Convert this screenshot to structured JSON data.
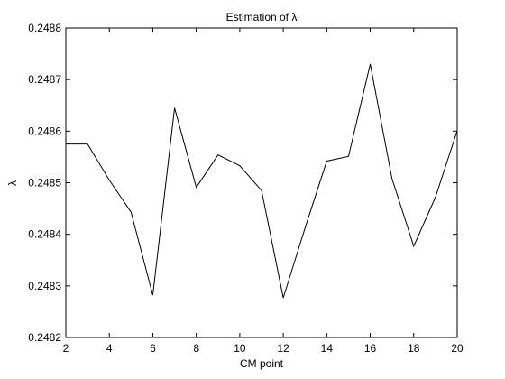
{
  "chart_data": {
    "type": "line",
    "title": "Estimation of λ",
    "xlabel": "CM point",
    "ylabel": "λ",
    "xlim": [
      2,
      20
    ],
    "ylim": [
      0.2482,
      0.2488
    ],
    "xticks": [
      2,
      4,
      6,
      8,
      10,
      12,
      14,
      16,
      18,
      20
    ],
    "xtick_labels": [
      "2",
      "4",
      "6",
      "8",
      "10",
      "12",
      "14",
      "16",
      "18",
      "20"
    ],
    "yticks": [
      0.2482,
      0.2483,
      0.2484,
      0.2485,
      0.2486,
      0.2487,
      0.2488
    ],
    "ytick_labels": [
      "0.2482",
      "0.2483",
      "0.2484",
      "0.2485",
      "0.2486",
      "0.2487",
      "0.2488"
    ],
    "grid": false,
    "series": [
      {
        "color": "#000000",
        "x": [
          2,
          3,
          4,
          5,
          6,
          7,
          8,
          9,
          10,
          11,
          12,
          13,
          14,
          15,
          16,
          17,
          18,
          19,
          20
        ],
        "y": [
          0.248575,
          0.248575,
          0.248505,
          0.248443,
          0.248282,
          0.248645,
          0.248491,
          0.248554,
          0.248533,
          0.248485,
          0.248277,
          0.248412,
          0.248542,
          0.248551,
          0.24873,
          0.248508,
          0.248377,
          0.248472,
          0.248601
        ]
      }
    ]
  }
}
